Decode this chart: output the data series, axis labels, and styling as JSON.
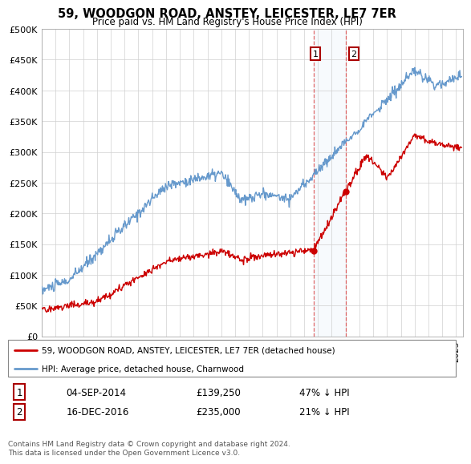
{
  "title": "59, WOODGON ROAD, ANSTEY, LEICESTER, LE7 7ER",
  "subtitle": "Price paid vs. HM Land Registry's House Price Index (HPI)",
  "footer": "Contains HM Land Registry data © Crown copyright and database right 2024.\nThis data is licensed under the Open Government Licence v3.0.",
  "legend_entries": [
    "59, WOODGON ROAD, ANSTEY, LEICESTER, LE7 7ER (detached house)",
    "HPI: Average price, detached house, Charnwood"
  ],
  "annotation1": {
    "label": "1",
    "date": "04-SEP-2014",
    "price": "£139,250",
    "pct": "47% ↓ HPI"
  },
  "annotation2": {
    "label": "2",
    "date": "16-DEC-2016",
    "price": "£235,000",
    "pct": "21% ↓ HPI"
  },
  "sale_color": "#cc0000",
  "hpi_color": "#6699cc",
  "ylim": [
    0,
    500000
  ],
  "yticks": [
    0,
    50000,
    100000,
    150000,
    200000,
    250000,
    300000,
    350000,
    400000,
    450000,
    500000
  ],
  "ytick_labels": [
    "£0",
    "£50K",
    "£100K",
    "£150K",
    "£200K",
    "£250K",
    "£300K",
    "£350K",
    "£400K",
    "£450K",
    "£500K"
  ],
  "sale1_x": 2014.67,
  "sale1_y": 139250,
  "sale2_x": 2017.0,
  "sale2_y": 235000,
  "xmin": 1995,
  "xmax": 2025.5
}
